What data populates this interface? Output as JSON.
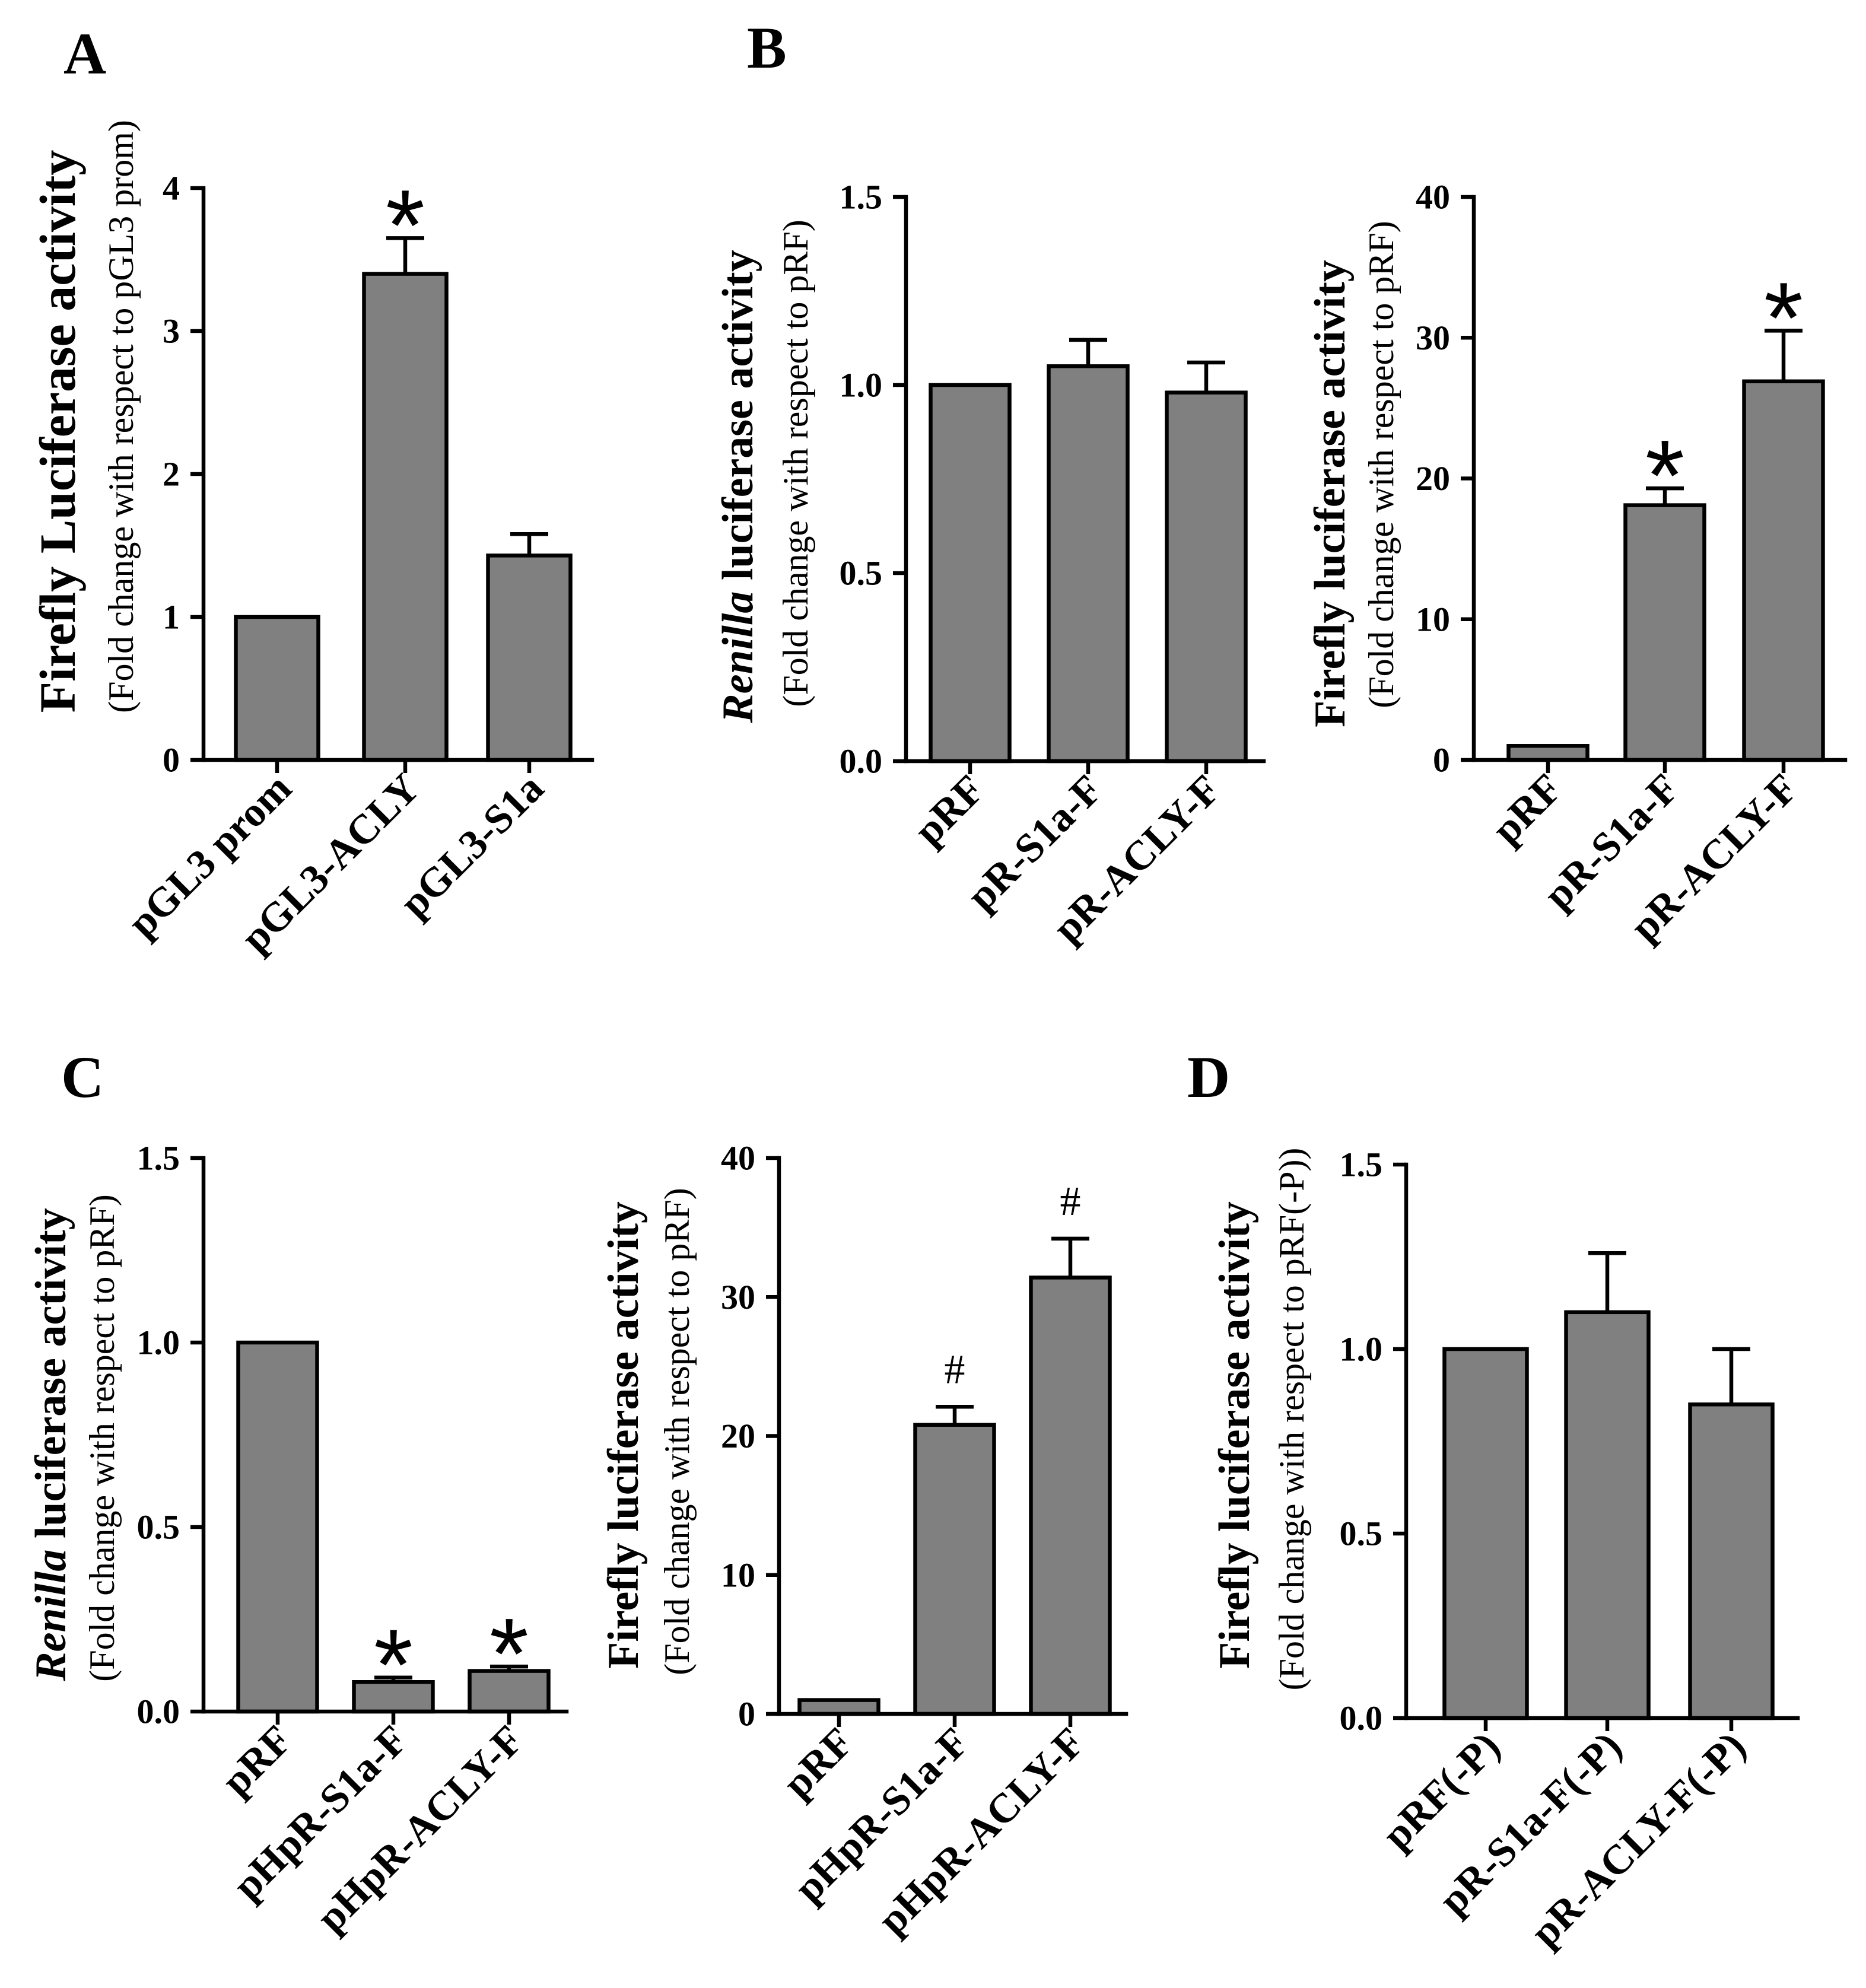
{
  "colors": {
    "bar_fill": "#808080",
    "ink": "#000000"
  },
  "chart_data": [
    {
      "type": "bar",
      "panel_label": "A",
      "ylabel": [
        {
          "text": "Firefly Luciferase activity",
          "italic": false
        }
      ],
      "ylabel_sub": "(Fold change with respect to pGL3 prom)",
      "categories": [
        "pGL3 prom",
        "pGL3-ACLY",
        "pGL3-S1a"
      ],
      "values": [
        1.0,
        3.4,
        1.43
      ],
      "errors": [
        null,
        0.25,
        0.15
      ],
      "markers": [
        null,
        "*",
        null
      ],
      "ylim": [
        0,
        4
      ],
      "yticks": [
        0,
        1,
        2,
        3,
        4
      ],
      "ytick_labels": [
        "0",
        "1",
        "2",
        "3",
        "4"
      ]
    },
    {
      "type": "bar",
      "panel_label": "B",
      "ylabel": [
        {
          "text": "Renilla",
          "italic": true
        },
        {
          "text": " luciferase activity",
          "italic": false
        }
      ],
      "ylabel_sub": "(Fold change with respect to pRF)",
      "categories": [
        "pRF",
        "pR-S1a-F",
        "pR-ACLY-F"
      ],
      "values": [
        1.0,
        1.05,
        0.98
      ],
      "errors": [
        null,
        0.07,
        0.08
      ],
      "markers": [
        null,
        null,
        null
      ],
      "ylim": [
        0,
        1.5
      ],
      "yticks": [
        0,
        0.5,
        1.0,
        1.5
      ],
      "ytick_labels": [
        "0.0",
        "0.5",
        "1.0",
        "1.5"
      ]
    },
    {
      "type": "bar",
      "ylabel": [
        {
          "text": "Firefly luciferase activity",
          "italic": false
        }
      ],
      "ylabel_sub": "(Fold change with respect to pRF)",
      "categories": [
        "pRF",
        "pR-S1a-F",
        "pR-ACLY-F"
      ],
      "values": [
        1.0,
        18.1,
        26.9
      ],
      "errors": [
        null,
        1.2,
        3.6
      ],
      "markers": [
        null,
        "*",
        "*"
      ],
      "ylim": [
        0,
        40
      ],
      "yticks": [
        0,
        10,
        20,
        30,
        40
      ],
      "ytick_labels": [
        "0",
        "10",
        "20",
        "30",
        "40"
      ]
    },
    {
      "type": "bar",
      "panel_label": "C",
      "ylabel": [
        {
          "text": "Renilla",
          "italic": true
        },
        {
          "text": " luciferase activity",
          "italic": false
        }
      ],
      "ylabel_sub": "(Fold change with respect to pRF)",
      "categories": [
        "pRF",
        "pHpR-S1a-F",
        "pHpR-ACLY-F"
      ],
      "values": [
        1.0,
        0.08,
        0.11
      ],
      "errors": [
        null,
        0.012,
        0.012
      ],
      "markers": [
        null,
        "*",
        "*"
      ],
      "ylim": [
        0,
        1.5
      ],
      "yticks": [
        0,
        0.5,
        1.0,
        1.5
      ],
      "ytick_labels": [
        "0.0",
        "0.5",
        "1.0",
        "1.5"
      ]
    },
    {
      "type": "bar",
      "ylabel": [
        {
          "text": "Firefly luciferase activity",
          "italic": false
        }
      ],
      "ylabel_sub": "(Fold change with respect to pRF)",
      "categories": [
        "pRF",
        "pHpR-S1a-F",
        "pHpR-ACLY-F"
      ],
      "values": [
        1.0,
        20.8,
        31.4
      ],
      "errors": [
        null,
        1.3,
        2.8
      ],
      "markers": [
        null,
        "#",
        "#"
      ],
      "ylim": [
        0,
        40
      ],
      "yticks": [
        0,
        10,
        20,
        30,
        40
      ],
      "ytick_labels": [
        "0",
        "10",
        "20",
        "30",
        "40"
      ]
    },
    {
      "type": "bar",
      "panel_label": "D",
      "ylabel": [
        {
          "text": "Firefly luciferase activity",
          "italic": false
        }
      ],
      "ylabel_sub": "(Fold change with respect to pRF(-P))",
      "categories": [
        "pRF(-P)",
        "pR-S1a-F(-P)",
        "pR-ACLY-F(-P)"
      ],
      "values": [
        1.0,
        1.1,
        0.85
      ],
      "errors": [
        null,
        0.16,
        0.15
      ],
      "markers": [
        null,
        null,
        null
      ],
      "ylim": [
        0,
        1.5
      ],
      "yticks": [
        0,
        0.5,
        1.0,
        1.5
      ],
      "ytick_labels": [
        "0.0",
        "0.5",
        "1.0",
        "1.5"
      ]
    }
  ]
}
